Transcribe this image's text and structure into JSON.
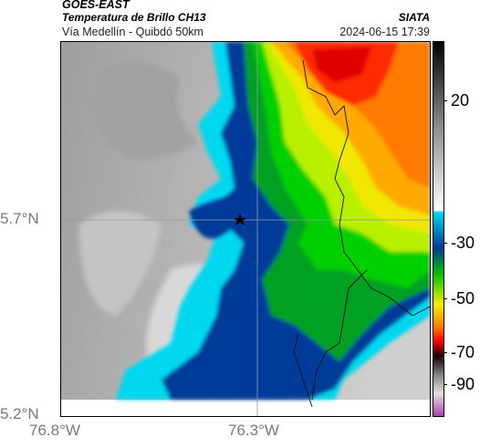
{
  "header": {
    "satellite": "GOES-EAST",
    "product": "Temperatura de Brillo CH13",
    "location": "Vía Medellín - Quibdó 50km",
    "organization": "SIATA",
    "timestamp": "2024-06-15 17:39"
  },
  "axes": {
    "lat_labels": [
      "5.7°N",
      "5.2°N"
    ],
    "lon_labels": [
      "76.8°W",
      "76.3°W"
    ]
  },
  "colorbar": {
    "labels": [
      "20",
      "-30",
      "-50",
      "-70",
      "-90"
    ],
    "colors": [
      "#000000",
      "#ffffff",
      "#00d8f0",
      "#003a9a",
      "#00c000",
      "#f0f000",
      "#ff8000",
      "#ff0000",
      "#1a0000",
      "#9a9a9a",
      "#b040b0"
    ]
  },
  "map": {
    "marker": "star-icon"
  }
}
